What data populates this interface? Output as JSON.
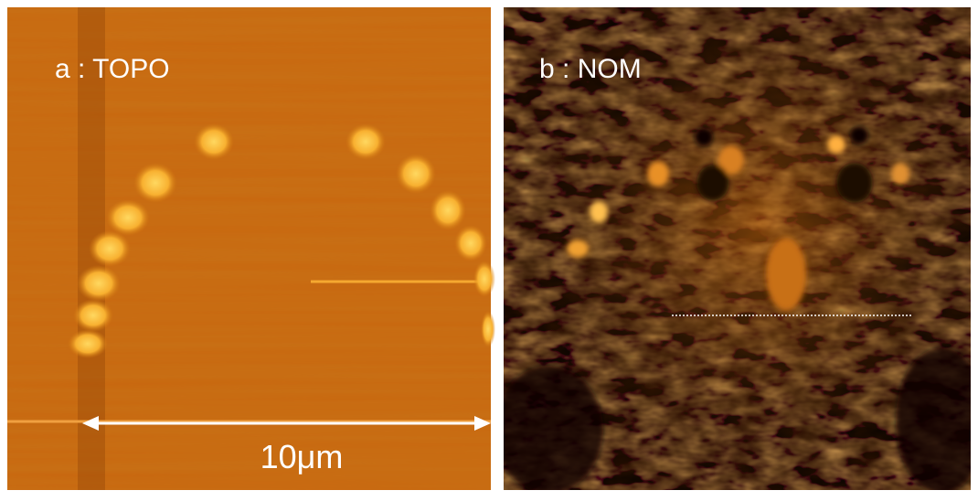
{
  "panels": [
    {
      "label": "a : TOPO"
    },
    {
      "label": "b : NOM"
    }
  ],
  "scale_bar": {
    "label": "10μm"
  }
}
